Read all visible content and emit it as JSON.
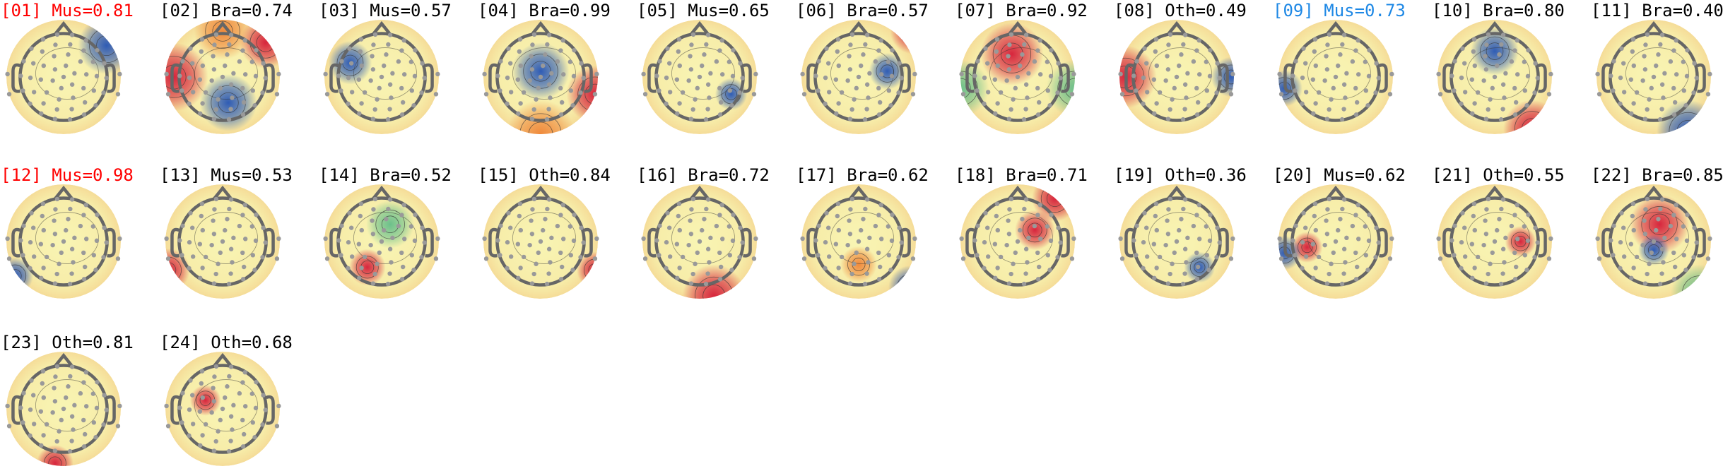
{
  "components": [
    {
      "title": "[01] Mus=0.81",
      "color": "#ff0000"
    },
    {
      "title": "[02] Bra=0.74",
      "color": "#000000"
    },
    {
      "title": "[03] Mus=0.57",
      "color": "#000000"
    },
    {
      "title": "[04] Bra=0.99",
      "color": "#000000"
    },
    {
      "title": "[05] Mus=0.65",
      "color": "#000000"
    },
    {
      "title": "[06] Bra=0.57",
      "color": "#000000"
    },
    {
      "title": "[07] Bra=0.92",
      "color": "#000000"
    },
    {
      "title": "[08] Oth=0.49",
      "color": "#000000"
    },
    {
      "title": "[09] Mus=0.73",
      "color": "#1e88e5"
    },
    {
      "title": "[10] Bra=0.80",
      "color": "#000000"
    },
    {
      "title": "[11] Bra=0.40",
      "color": "#000000"
    },
    {
      "title": "[12] Mus=0.98",
      "color": "#ff0000"
    },
    {
      "title": "[13] Mus=0.53",
      "color": "#000000"
    },
    {
      "title": "[14] Bra=0.52",
      "color": "#000000"
    },
    {
      "title": "[15] Oth=0.84",
      "color": "#000000"
    },
    {
      "title": "[16] Bra=0.72",
      "color": "#000000"
    },
    {
      "title": "[17] Bra=0.62",
      "color": "#000000"
    },
    {
      "title": "[18] Bra=0.71",
      "color": "#000000"
    },
    {
      "title": "[19] Oth=0.36",
      "color": "#000000"
    },
    {
      "title": "[20] Mus=0.62",
      "color": "#000000"
    },
    {
      "title": "[21] Oth=0.55",
      "color": "#000000"
    },
    {
      "title": "[22] Bra=0.85",
      "color": "#000000"
    },
    {
      "title": "[23] Oth=0.81",
      "color": "#000000"
    },
    {
      "title": "[24] Oth=0.68",
      "color": "#000000"
    }
  ]
}
